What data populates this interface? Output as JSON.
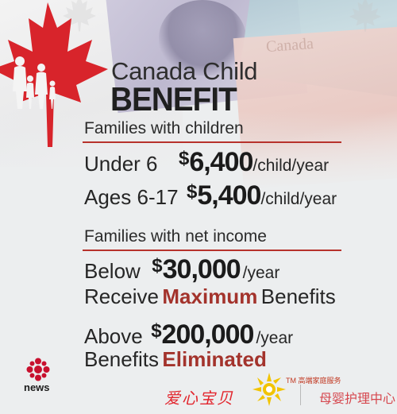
{
  "title": {
    "line1": "Canada Child",
    "line2": "BENEFIT"
  },
  "section_children": {
    "heading": "Families with children",
    "rows": [
      {
        "label": "Under 6",
        "dollar": "$",
        "amount": "6,400",
        "unit": "/child/year"
      },
      {
        "label": "Ages 6-17",
        "dollar": "$",
        "amount": "5,400",
        "unit": "/child/year"
      }
    ]
  },
  "section_income": {
    "heading": "Families with net income",
    "below": {
      "label": "Below",
      "dollar": "$",
      "amount": "30,000",
      "unit": "/year",
      "result_pre": "Receive",
      "result_highlight": "Maximum",
      "result_post": "Benefits"
    },
    "above": {
      "label": "Above",
      "dollar": "$",
      "amount": "200,000",
      "unit": "/year",
      "result_pre": "Benefits",
      "result_highlight": "Eliminated"
    }
  },
  "footer": {
    "cbc_label": "news",
    "tm_text": "TM 高端家庭服务",
    "brand_left": "爱心宝贝",
    "brand_right": "母婴护理中心"
  },
  "colors": {
    "accent_red": "#b7322c",
    "highlight_red": "#a3332c",
    "leaf_red": "#d8242b"
  },
  "background_note_text": "Canada"
}
